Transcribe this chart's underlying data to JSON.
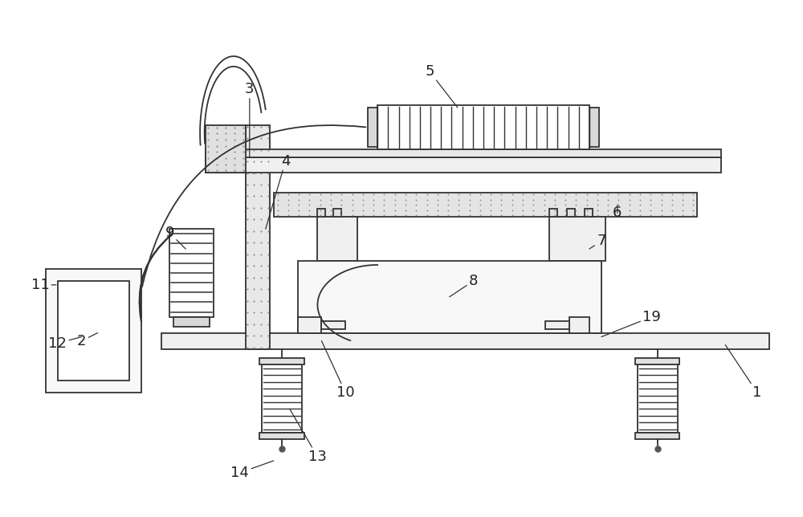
{
  "background_color": "#ffffff",
  "line_color": "#333333",
  "label_color": "#222222",
  "label_fontsize": 13,
  "lw": 1.3
}
